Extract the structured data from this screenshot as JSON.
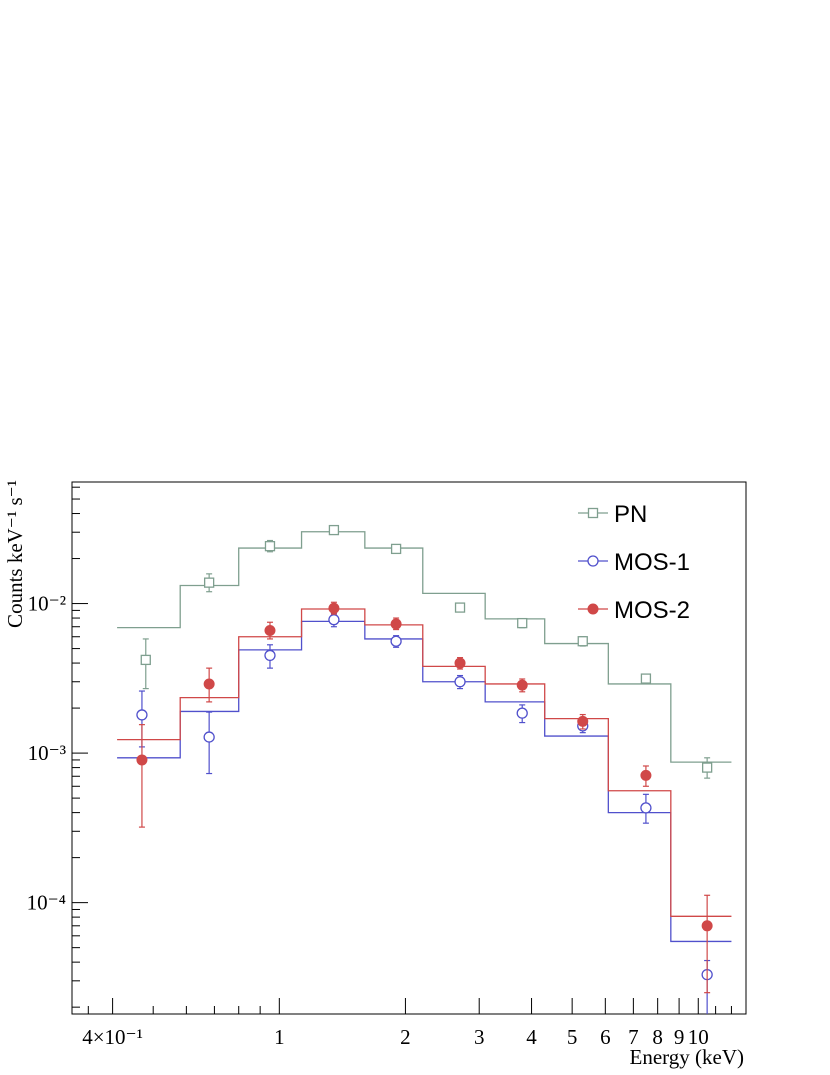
{
  "chart_data": {
    "type": "scatter",
    "xscale": "log",
    "yscale": "log",
    "xlim": [
      0.32,
      13.0
    ],
    "ylim": [
      1.8e-05,
      0.065
    ],
    "xlabel": "Energy (keV)",
    "ylabel": "Counts keV⁻¹ s⁻¹",
    "x_ticks": [
      {
        "value": 0.4,
        "label": "4×10⁻¹"
      },
      {
        "value": 1,
        "label": "1"
      },
      {
        "value": 2,
        "label": "2"
      },
      {
        "value": 3,
        "label": "3"
      },
      {
        "value": 4,
        "label": "4"
      },
      {
        "value": 5,
        "label": "5"
      },
      {
        "value": 6,
        "label": "6"
      },
      {
        "value": 7,
        "label": "7"
      },
      {
        "value": 8,
        "label": "8"
      },
      {
        "value": 9,
        "label": "9"
      },
      {
        "value": 10,
        "label": "10"
      }
    ],
    "y_ticks": [
      {
        "value": 0.0001,
        "label": "10⁻⁴"
      },
      {
        "value": 0.001,
        "label": "10⁻³"
      },
      {
        "value": 0.01,
        "label": "10⁻²"
      }
    ],
    "legend": {
      "position": "top-right"
    },
    "grid": false,
    "series": [
      {
        "name": "PN",
        "color": "#7f9f8f",
        "marker": "open-square",
        "points": [
          {
            "x": 0.48,
            "y": 0.0042,
            "err": [
              0.0015,
              0.0016
            ]
          },
          {
            "x": 0.68,
            "y": 0.0138,
            "err": [
              0.0018,
              0.002
            ]
          },
          {
            "x": 0.95,
            "y": 0.0242,
            "err": [
              0.002,
              0.0022
            ]
          },
          {
            "x": 1.35,
            "y": 0.031,
            "err": [
              0.0018,
              0.0018
            ]
          },
          {
            "x": 1.9,
            "y": 0.0232,
            "err": [
              0.0012,
              0.0012
            ]
          },
          {
            "x": 2.7,
            "y": 0.0094,
            "err": [
              0.0006,
              0.0006
            ]
          },
          {
            "x": 3.8,
            "y": 0.0074,
            "err": [
              0.0005,
              0.0005
            ]
          },
          {
            "x": 5.3,
            "y": 0.0056,
            "err": [
              0.0004,
              0.0004
            ]
          },
          {
            "x": 7.5,
            "y": 0.00315,
            "err": [
              0.00022,
              0.00022
            ]
          },
          {
            "x": 10.5,
            "y": 0.0008,
            "err": [
              0.00012,
              0.00013
            ]
          }
        ],
        "model": {
          "edges": [
            0.41,
            0.58,
            0.8,
            1.13,
            1.6,
            2.2,
            3.1,
            4.3,
            6.1,
            8.6,
            12.0
          ],
          "values": [
            0.0069,
            0.0132,
            0.0235,
            0.0302,
            0.0235,
            0.0117,
            0.0079,
            0.0054,
            0.0029,
            0.00087
          ]
        }
      },
      {
        "name": "MOS-1",
        "color": "#5050cc",
        "marker": "open-circle",
        "points": [
          {
            "x": 0.47,
            "y": 0.0018,
            "err": [
              0.0007,
              0.0008
            ]
          },
          {
            "x": 0.68,
            "y": 0.00128,
            "err": [
              0.00055,
              0.0006
            ]
          },
          {
            "x": 0.95,
            "y": 0.0045,
            "err": [
              0.0008,
              0.0008
            ]
          },
          {
            "x": 1.35,
            "y": 0.0078,
            "err": [
              0.0008,
              0.0008
            ]
          },
          {
            "x": 1.9,
            "y": 0.0056,
            "err": [
              0.0005,
              0.0005
            ]
          },
          {
            "x": 2.7,
            "y": 0.003,
            "err": [
              0.0003,
              0.0003
            ]
          },
          {
            "x": 3.8,
            "y": 0.00185,
            "err": [
              0.00025,
              0.00025
            ]
          },
          {
            "x": 5.3,
            "y": 0.00152,
            "err": [
              0.00015,
              0.00015
            ]
          },
          {
            "x": 7.5,
            "y": 0.00043,
            "err": [
              9e-05,
              0.0001
            ]
          },
          {
            "x": 10.5,
            "y": 3.3e-05,
            "err": [
              3.32e-05,
              8e-06
            ]
          }
        ],
        "model": {
          "edges": [
            0.41,
            0.58,
            0.8,
            1.13,
            1.6,
            2.2,
            3.1,
            4.3,
            6.1,
            8.6,
            12.0
          ],
          "values": [
            0.00093,
            0.0019,
            0.0049,
            0.0076,
            0.0058,
            0.003,
            0.0022,
            0.0013,
            0.0004,
            5.5e-05
          ]
        }
      },
      {
        "name": "MOS-2",
        "color": "#d04848",
        "marker": "filled-circle",
        "points": [
          {
            "x": 0.47,
            "y": 0.0009,
            "err": [
              0.00058,
              0.00065
            ]
          },
          {
            "x": 0.68,
            "y": 0.0029,
            "err": [
              0.0007,
              0.0008
            ]
          },
          {
            "x": 0.95,
            "y": 0.0066,
            "err": [
              0.0008,
              0.0009
            ]
          },
          {
            "x": 1.35,
            "y": 0.0093,
            "err": [
              0.0008,
              0.0009
            ]
          },
          {
            "x": 1.9,
            "y": 0.0073,
            "err": [
              0.0006,
              0.0007
            ]
          },
          {
            "x": 2.7,
            "y": 0.004,
            "err": [
              0.00035,
              0.00035
            ]
          },
          {
            "x": 3.8,
            "y": 0.00285,
            "err": [
              0.00028,
              0.00028
            ]
          },
          {
            "x": 5.3,
            "y": 0.00163,
            "err": [
              0.00018,
              0.00018
            ]
          },
          {
            "x": 7.5,
            "y": 0.00071,
            "err": [
              0.00011,
              0.00011
            ]
          },
          {
            "x": 10.5,
            "y": 7e-05,
            "err": [
              4.5e-05,
              4.2e-05
            ]
          }
        ],
        "model": {
          "edges": [
            0.41,
            0.58,
            0.8,
            1.13,
            1.6,
            2.2,
            3.1,
            4.3,
            6.1,
            8.6,
            12.0
          ],
          "values": [
            0.00123,
            0.00235,
            0.006,
            0.0092,
            0.0072,
            0.0038,
            0.0029,
            0.0017,
            0.00056,
            8.1e-05
          ]
        }
      }
    ]
  }
}
